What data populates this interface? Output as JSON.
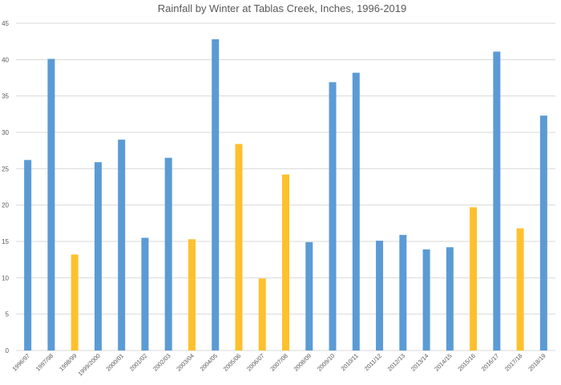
{
  "chart_data": {
    "type": "bar",
    "title": "Rainfall by Winter at Tablas Creek, Inches, 1996-2019",
    "xlabel": "",
    "ylabel": "",
    "ylim": [
      0,
      45
    ],
    "yticks": [
      0,
      5,
      10,
      15,
      20,
      25,
      30,
      35,
      40,
      45
    ],
    "grid": true,
    "legend": "none",
    "colors": {
      "above": "#5b9bd5",
      "below": "#ffc02d",
      "grid": "#d9d9d9",
      "text": "#595959"
    },
    "categories": [
      "1996/97",
      "1997/98",
      "1998/99",
      "1999/2000",
      "2000/01",
      "2001/02",
      "2002/03",
      "2003/04",
      "2004/05",
      "2005/06",
      "2006/07",
      "2007/08",
      "2008/09",
      "2009/10",
      "2010/11",
      "2011/12",
      "2012/13",
      "2013/14",
      "2014/15",
      "2015/16",
      "2016/17",
      "2017/18",
      "2018/19"
    ],
    "values": [
      26.2,
      40.1,
      13.2,
      25.9,
      29.0,
      15.5,
      26.5,
      15.3,
      42.8,
      28.4,
      9.9,
      24.2,
      14.9,
      36.9,
      38.2,
      15.1,
      15.9,
      13.9,
      14.2,
      19.7,
      41.1,
      16.8,
      32.3
    ],
    "bar_colors": [
      "blue",
      "blue",
      "yellow",
      "blue",
      "blue",
      "blue",
      "blue",
      "yellow",
      "blue",
      "yellow",
      "yellow",
      "yellow",
      "blue",
      "blue",
      "blue",
      "blue",
      "blue",
      "blue",
      "blue",
      "yellow",
      "blue",
      "yellow",
      "blue"
    ]
  }
}
